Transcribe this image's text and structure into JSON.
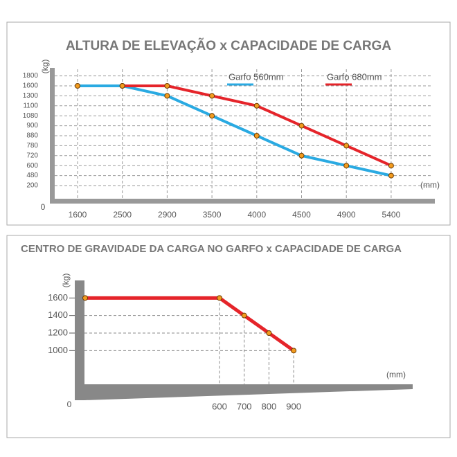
{
  "chart_data": [
    {
      "type": "line",
      "title": "ALTURA DE ELEVAÇÃO x CAPACIDADE DE CARGA",
      "y_label": "(kg)",
      "x_label": "(mm)",
      "origin_label": "0",
      "categories": [
        "1600",
        "2500",
        "2900",
        "3500",
        "4000",
        "4500",
        "4900",
        "5400"
      ],
      "yticks": [
        200,
        480,
        600,
        720,
        780,
        880,
        900,
        1080,
        1100,
        1300,
        1600,
        1800
      ],
      "grid": true,
      "marker_color": "#f39c1f",
      "series": [
        {
          "name": "Garfo 560mm",
          "color": "#2aaae2",
          "values": [
            1600,
            1600,
            1300,
            1080,
            880,
            720,
            600,
            480
          ]
        },
        {
          "name": "Garfo 680mm",
          "color": "#e5242a",
          "values": [
            null,
            1600,
            1600,
            1300,
            1100,
            900,
            780,
            600
          ]
        }
      ]
    },
    {
      "type": "line",
      "title": "CENTRO DE GRAVIDADE DA CARGA NO GARFO x CAPACIDADE DE CARGA",
      "y_label": "(kg)",
      "x_label": "(mm)",
      "origin_label": "0",
      "categories": [
        null,
        "600",
        "700",
        "800",
        "900"
      ],
      "ylim": [
        600,
        1800
      ],
      "yticks": [
        1000,
        1200,
        1400,
        1600
      ],
      "grid": true,
      "marker_color": "#f39c1f",
      "series": [
        {
          "color": "#e5242a",
          "values": [
            1600,
            1600,
            1400,
            1200,
            1000
          ]
        }
      ]
    }
  ]
}
